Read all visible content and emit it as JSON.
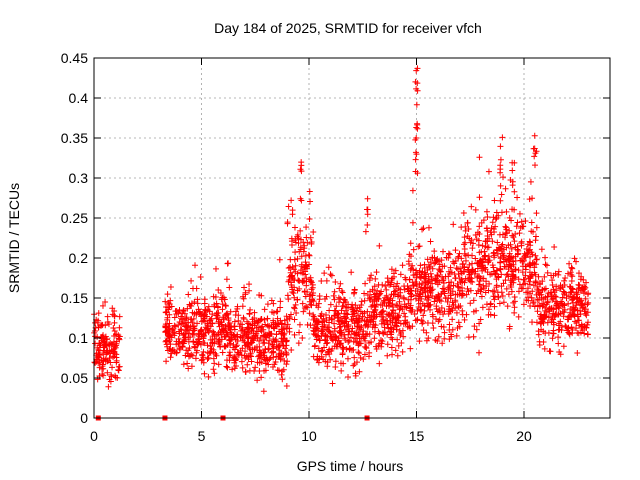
{
  "chart_data": {
    "type": "scatter",
    "title": "Day 184 of 2025, SRMTID for receiver vfch",
    "xlabel": "GPS time / hours",
    "ylabel": "SRMTID / TECUs",
    "xlim": [
      0,
      24
    ],
    "ylim": [
      0,
      0.45
    ],
    "xticks": [
      0,
      5,
      10,
      15,
      20
    ],
    "xtick_labels": [
      "0",
      "5",
      "10",
      "15",
      "20"
    ],
    "yticks": [
      0,
      0.05,
      0.1,
      0.15,
      0.2,
      0.25,
      0.3,
      0.35,
      0.4,
      0.45
    ],
    "ytick_labels": [
      "0",
      "0.05",
      "0.1",
      "0.15",
      "0.2",
      "0.25",
      "0.3",
      "0.35",
      "0.4",
      "0.45"
    ],
    "grid": true,
    "marker": "plus",
    "color": "#ff0000",
    "segments": [
      {
        "x_start": 0.0,
        "x_end": 1.2,
        "mean": 0.09,
        "spread": 0.03
      },
      {
        "x_start": 3.3,
        "x_end": 4.3,
        "mean": 0.105,
        "spread": 0.03
      },
      {
        "x_start": 4.3,
        "x_end": 6.3,
        "mean": 0.11,
        "spread": 0.035
      },
      {
        "x_start": 6.3,
        "x_end": 7.8,
        "mean": 0.1,
        "spread": 0.03
      },
      {
        "x_start": 7.8,
        "x_end": 9.0,
        "mean": 0.095,
        "spread": 0.03
      },
      {
        "x_start": 9.0,
        "x_end": 10.2,
        "mean": 0.17,
        "spread": 0.05
      },
      {
        "x_start": 10.2,
        "x_end": 12.8,
        "mean": 0.11,
        "spread": 0.035
      },
      {
        "x_start": 12.8,
        "x_end": 14.6,
        "mean": 0.13,
        "spread": 0.035
      },
      {
        "x_start": 14.6,
        "x_end": 17.2,
        "mean": 0.16,
        "spread": 0.04
      },
      {
        "x_start": 17.2,
        "x_end": 20.6,
        "mean": 0.19,
        "spread": 0.05
      },
      {
        "x_start": 20.6,
        "x_end": 23.0,
        "mean": 0.135,
        "spread": 0.035
      }
    ],
    "peaks": [
      {
        "x": 9.6,
        "y": 0.32
      },
      {
        "x": 12.7,
        "y": 0.28
      },
      {
        "x": 15.0,
        "y": 0.44
      },
      {
        "x": 15.0,
        "y": 0.4
      },
      {
        "x": 15.0,
        "y": 0.35
      },
      {
        "x": 18.9,
        "y": 0.34
      },
      {
        "x": 20.5,
        "y": 0.36
      },
      {
        "x": 19.5,
        "y": 0.33
      }
    ],
    "zero_markers": [
      0.2,
      3.3,
      6.0,
      12.7
    ],
    "point_count": 2600
  }
}
